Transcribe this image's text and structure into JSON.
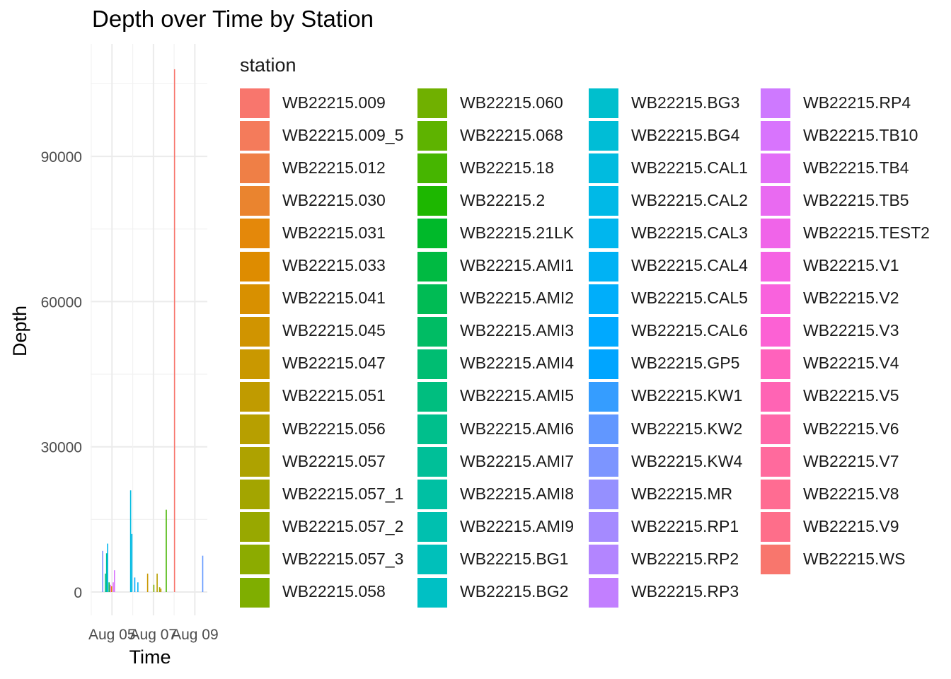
{
  "chart_data": {
    "type": "bar",
    "title": "Depth over Time by Station",
    "xlabel": "Time",
    "ylabel": "Depth",
    "ylim": [
      0,
      108000
    ],
    "yticks": [
      0,
      30000,
      60000,
      90000
    ],
    "ytick_labels": [
      "0",
      "30000",
      "60000",
      "90000"
    ],
    "xtick_labels": [
      "Aug 05",
      "Aug 07",
      "Aug 09"
    ],
    "grid": true,
    "legend": {
      "title": "station",
      "placement": "right"
    },
    "stations": [
      {
        "name": "WB22215.009",
        "color": "#F8766D"
      },
      {
        "name": "WB22215.009_5",
        "color": "#F47B5B"
      },
      {
        "name": "WB22215.012",
        "color": "#EF7F46"
      },
      {
        "name": "WB22215.030",
        "color": "#EA842F"
      },
      {
        "name": "WB22215.031",
        "color": "#E4880A"
      },
      {
        "name": "WB22215.033",
        "color": "#DE8C00"
      },
      {
        "name": "WB22215.041",
        "color": "#D89000"
      },
      {
        "name": "WB22215.045",
        "color": "#D09400"
      },
      {
        "name": "WB22215.047",
        "color": "#C99800"
      },
      {
        "name": "WB22215.051",
        "color": "#C09B00"
      },
      {
        "name": "WB22215.056",
        "color": "#B79F00"
      },
      {
        "name": "WB22215.057",
        "color": "#AEA200"
      },
      {
        "name": "WB22215.057_1",
        "color": "#A3A500"
      },
      {
        "name": "WB22215.057_2",
        "color": "#98A800"
      },
      {
        "name": "WB22215.057_3",
        "color": "#8CAB00"
      },
      {
        "name": "WB22215.058",
        "color": "#7FAE00"
      },
      {
        "name": "WB22215.060",
        "color": "#70B000"
      },
      {
        "name": "WB22215.068",
        "color": "#5EB300"
      },
      {
        "name": "WB22215.18",
        "color": "#46B500"
      },
      {
        "name": "WB22215.2",
        "color": "#1DB700"
      },
      {
        "name": "WB22215.21LK",
        "color": "#00B92A"
      },
      {
        "name": "WB22215.AMI1",
        "color": "#00BA42"
      },
      {
        "name": "WB22215.AMI2",
        "color": "#00BB54"
      },
      {
        "name": "WB22215.AMI3",
        "color": "#00BC64"
      },
      {
        "name": "WB22215.AMI4",
        "color": "#00BD72"
      },
      {
        "name": "WB22215.AMI5",
        "color": "#00BE7F"
      },
      {
        "name": "WB22215.AMI6",
        "color": "#00BF8C"
      },
      {
        "name": "WB22215.AMI7",
        "color": "#00BF98"
      },
      {
        "name": "WB22215.AMI8",
        "color": "#00C0A3"
      },
      {
        "name": "WB22215.AMI9",
        "color": "#00C0AF"
      },
      {
        "name": "WB22215.BG1",
        "color": "#00C0BA"
      },
      {
        "name": "WB22215.BG2",
        "color": "#00C0C4"
      },
      {
        "name": "WB22215.BG3",
        "color": "#00BFCD"
      },
      {
        "name": "WB22215.BG4",
        "color": "#00BDD6"
      },
      {
        "name": "WB22215.CAL1",
        "color": "#00BBDF"
      },
      {
        "name": "WB22215.CAL2",
        "color": "#00B9E7"
      },
      {
        "name": "WB22215.CAL3",
        "color": "#00B6EE"
      },
      {
        "name": "WB22215.CAL4",
        "color": "#00B2F4"
      },
      {
        "name": "WB22215.CAL5",
        "color": "#00AEFA"
      },
      {
        "name": "WB22215.CAL6",
        "color": "#00A9FF"
      },
      {
        "name": "WB22215.GP5",
        "color": "#00A5FF"
      },
      {
        "name": "WB22215.KW1",
        "color": "#359DFF"
      },
      {
        "name": "WB22215.KW2",
        "color": "#6197FF"
      },
      {
        "name": "WB22215.KW4",
        "color": "#7C95FF"
      },
      {
        "name": "WB22215.MR",
        "color": "#9590FF"
      },
      {
        "name": "WB22215.RP1",
        "color": "#A58AFF"
      },
      {
        "name": "WB22215.RP2",
        "color": "#B385FF"
      },
      {
        "name": "WB22215.RP3",
        "color": "#C27FFF"
      },
      {
        "name": "WB22215.RP4",
        "color": "#CE79FF"
      },
      {
        "name": "WB22215.TB10",
        "color": "#D874FD"
      },
      {
        "name": "WB22215.TB4",
        "color": "#E26EF7"
      },
      {
        "name": "WB22215.TB5",
        "color": "#E96AF1"
      },
      {
        "name": "WB22215.TEST2",
        "color": "#F064E9"
      },
      {
        "name": "WB22215.V1",
        "color": "#F563E3"
      },
      {
        "name": "WB22215.V2",
        "color": "#F962DD"
      },
      {
        "name": "WB22215.V3",
        "color": "#FC61D4"
      },
      {
        "name": "WB22215.V4",
        "color": "#FF62BC"
      },
      {
        "name": "WB22215.V5",
        "color": "#FF64B4"
      },
      {
        "name": "WB22215.V6",
        "color": "#FF67A9"
      },
      {
        "name": "WB22215.V7",
        "color": "#FF6A9D"
      },
      {
        "name": "WB22215.V8",
        "color": "#FF6C92"
      },
      {
        "name": "WB22215.V9",
        "color": "#FE6E8A"
      },
      {
        "name": "WB22215.WS",
        "color": "#F8766D"
      }
    ],
    "bars": [
      {
        "t": 4.55,
        "value": 8500,
        "color": "#7C95FF"
      },
      {
        "t": 4.68,
        "value": 3800,
        "color": "#00BE7F"
      },
      {
        "t": 4.74,
        "value": 8000,
        "color": "#00BF98"
      },
      {
        "t": 4.79,
        "value": 10000,
        "color": "#00B6EE"
      },
      {
        "t": 4.86,
        "value": 2000,
        "color": "#00BA42"
      },
      {
        "t": 4.92,
        "value": 1500,
        "color": "#F064E9"
      },
      {
        "t": 4.98,
        "value": 1200,
        "color": "#DE8C00"
      },
      {
        "t": 5.06,
        "value": 2000,
        "color": "#E26EF7"
      },
      {
        "t": 5.12,
        "value": 4500,
        "color": "#D874FD"
      },
      {
        "t": 5.9,
        "value": 21000,
        "color": "#00BBDF"
      },
      {
        "t": 5.96,
        "value": 12000,
        "color": "#00B9E7"
      },
      {
        "t": 6.1,
        "value": 3000,
        "color": "#00A9FF"
      },
      {
        "t": 6.25,
        "value": 2000,
        "color": "#00B2F4"
      },
      {
        "t": 6.72,
        "value": 3800,
        "color": "#C99800"
      },
      {
        "t": 7.02,
        "value": 1500,
        "color": "#7FAE00"
      },
      {
        "t": 7.18,
        "value": 3800,
        "color": "#B79F00"
      },
      {
        "t": 7.3,
        "value": 1000,
        "color": "#A3A500"
      },
      {
        "t": 7.36,
        "value": 700,
        "color": "#C09B00"
      },
      {
        "t": 7.62,
        "value": 17000,
        "color": "#46B500"
      },
      {
        "t": 8.02,
        "value": 108000,
        "color": "#F8766D"
      },
      {
        "t": 9.38,
        "value": 7500,
        "color": "#6197FF"
      }
    ]
  }
}
